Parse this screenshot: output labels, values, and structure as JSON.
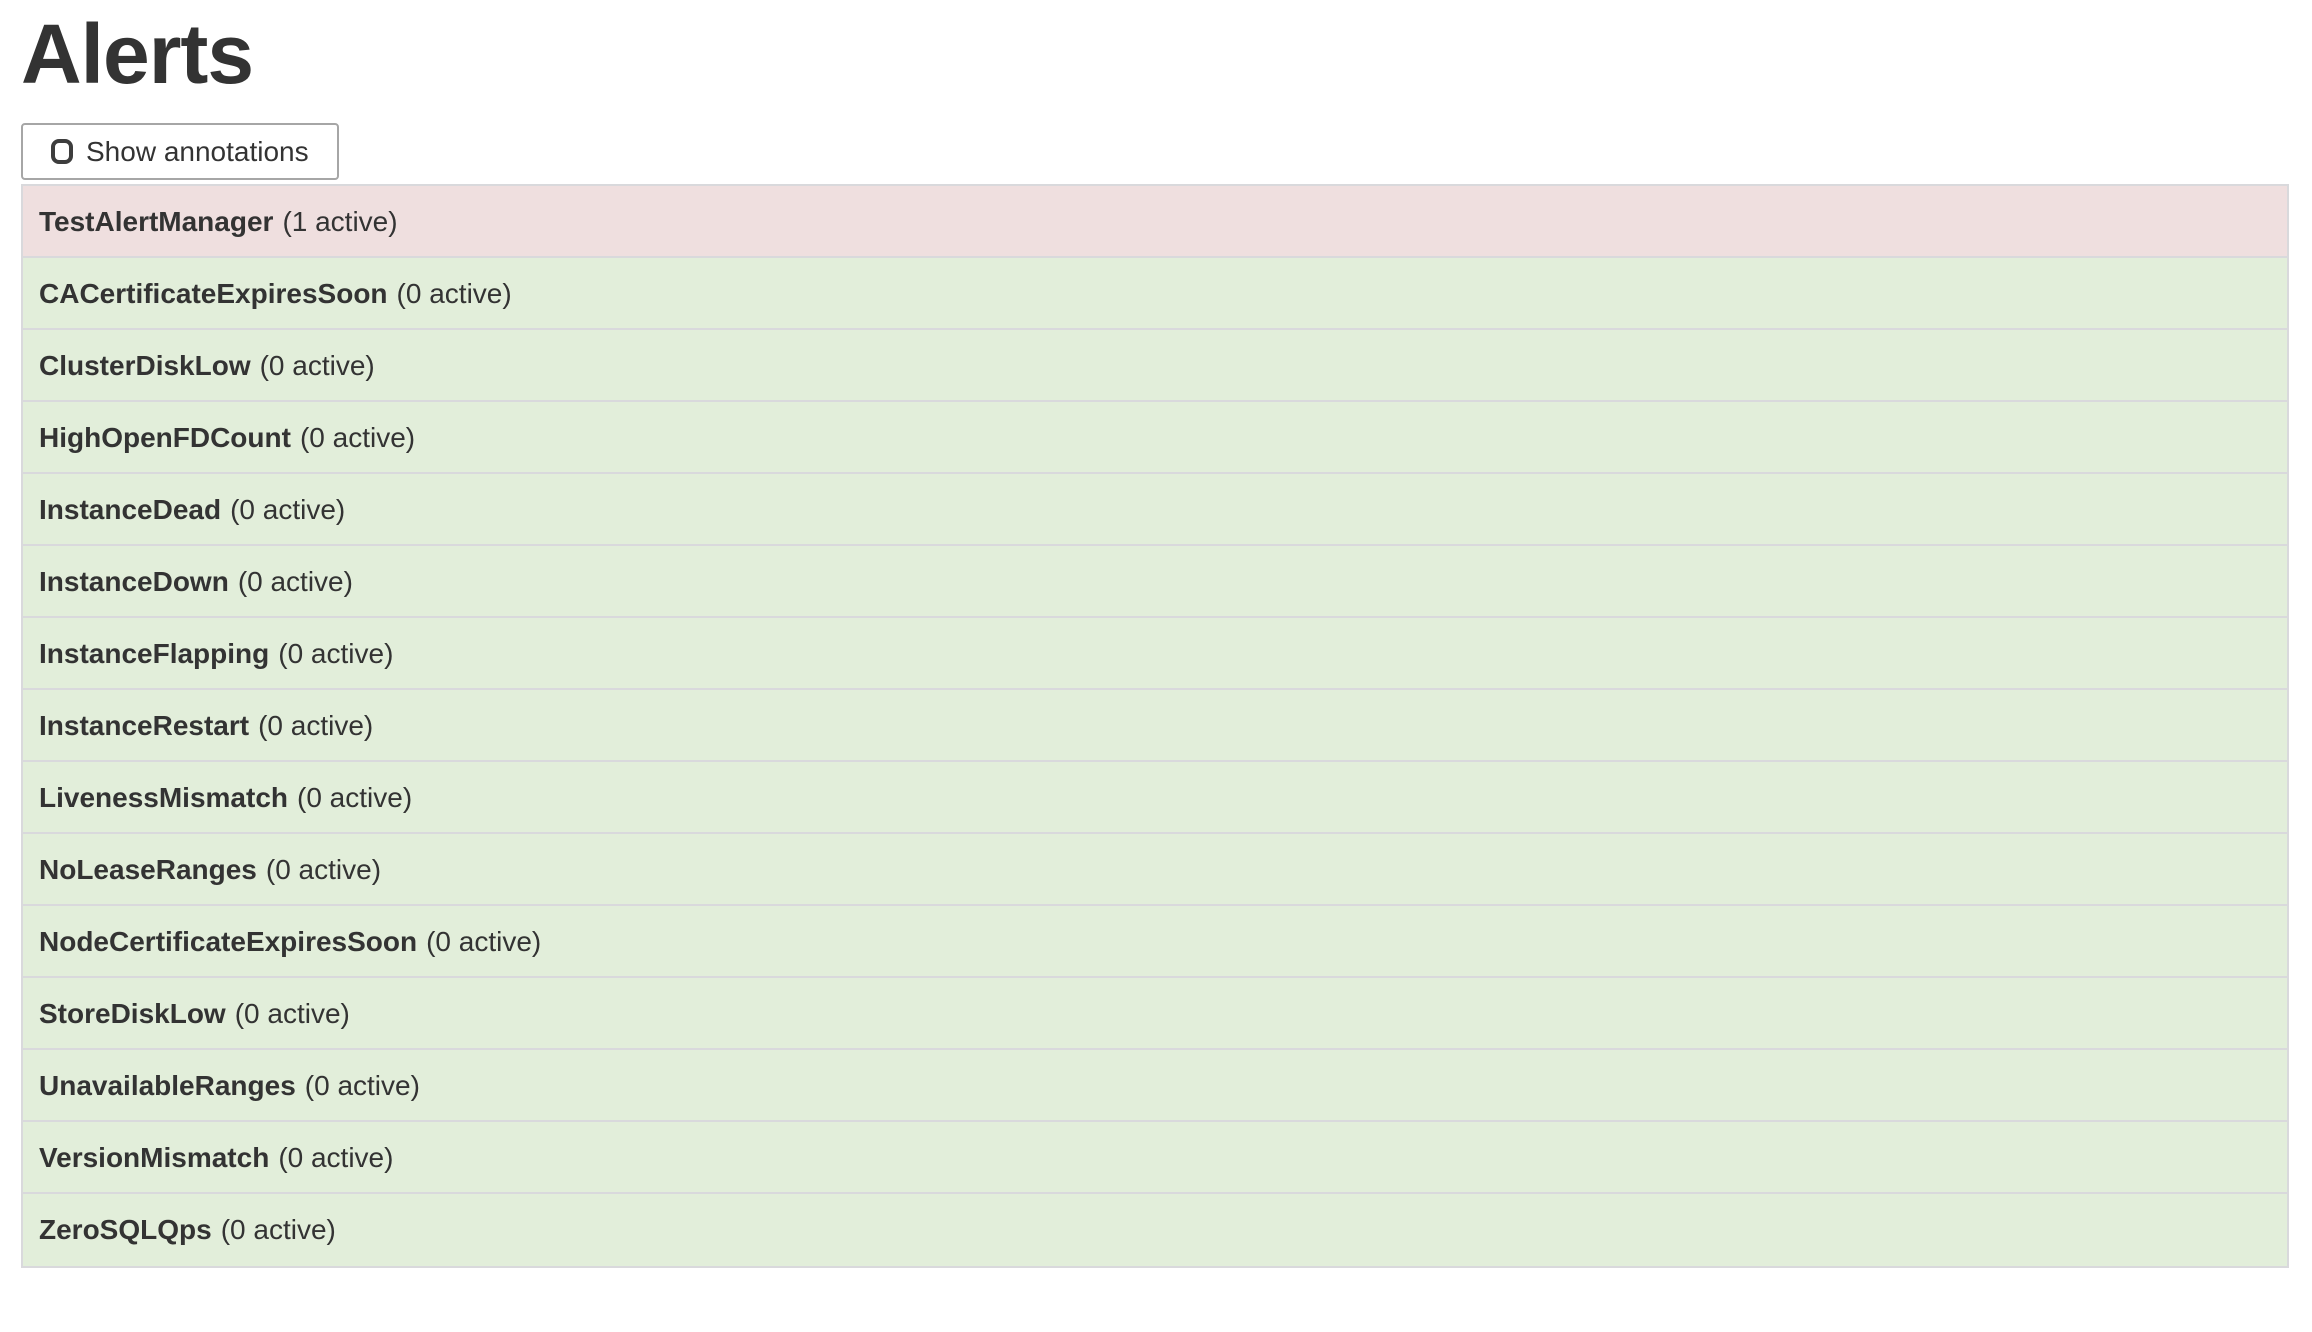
{
  "page": {
    "title": "Alerts"
  },
  "toolbar": {
    "show_annotations_label": "Show annotations",
    "checkbox_checked": false
  },
  "alerts": {
    "items": [
      {
        "name": "TestAlertManager",
        "count_text": "(1 active)",
        "active_count": 1,
        "state": "firing"
      },
      {
        "name": "CACertificateExpiresSoon",
        "count_text": "(0 active)",
        "active_count": 0,
        "state": "inactive"
      },
      {
        "name": "ClusterDiskLow",
        "count_text": "(0 active)",
        "active_count": 0,
        "state": "inactive"
      },
      {
        "name": "HighOpenFDCount",
        "count_text": "(0 active)",
        "active_count": 0,
        "state": "inactive"
      },
      {
        "name": "InstanceDead",
        "count_text": "(0 active)",
        "active_count": 0,
        "state": "inactive"
      },
      {
        "name": "InstanceDown",
        "count_text": "(0 active)",
        "active_count": 0,
        "state": "inactive"
      },
      {
        "name": "InstanceFlapping",
        "count_text": "(0 active)",
        "active_count": 0,
        "state": "inactive"
      },
      {
        "name": "InstanceRestart",
        "count_text": "(0 active)",
        "active_count": 0,
        "state": "inactive"
      },
      {
        "name": "LivenessMismatch",
        "count_text": "(0 active)",
        "active_count": 0,
        "state": "inactive"
      },
      {
        "name": "NoLeaseRanges",
        "count_text": "(0 active)",
        "active_count": 0,
        "state": "inactive"
      },
      {
        "name": "NodeCertificateExpiresSoon",
        "count_text": "(0 active)",
        "active_count": 0,
        "state": "inactive"
      },
      {
        "name": "StoreDiskLow",
        "count_text": "(0 active)",
        "active_count": 0,
        "state": "inactive"
      },
      {
        "name": "UnavailableRanges",
        "count_text": "(0 active)",
        "active_count": 0,
        "state": "inactive"
      },
      {
        "name": "VersionMismatch",
        "count_text": "(0 active)",
        "active_count": 0,
        "state": "inactive"
      },
      {
        "name": "ZeroSQLQps",
        "count_text": "(0 active)",
        "active_count": 0,
        "state": "inactive"
      }
    ]
  },
  "colors": {
    "firing_bg": "#efdfdf",
    "inactive_bg": "#e2eeda",
    "row_border": "#d9d9dc",
    "text": "#333333"
  }
}
